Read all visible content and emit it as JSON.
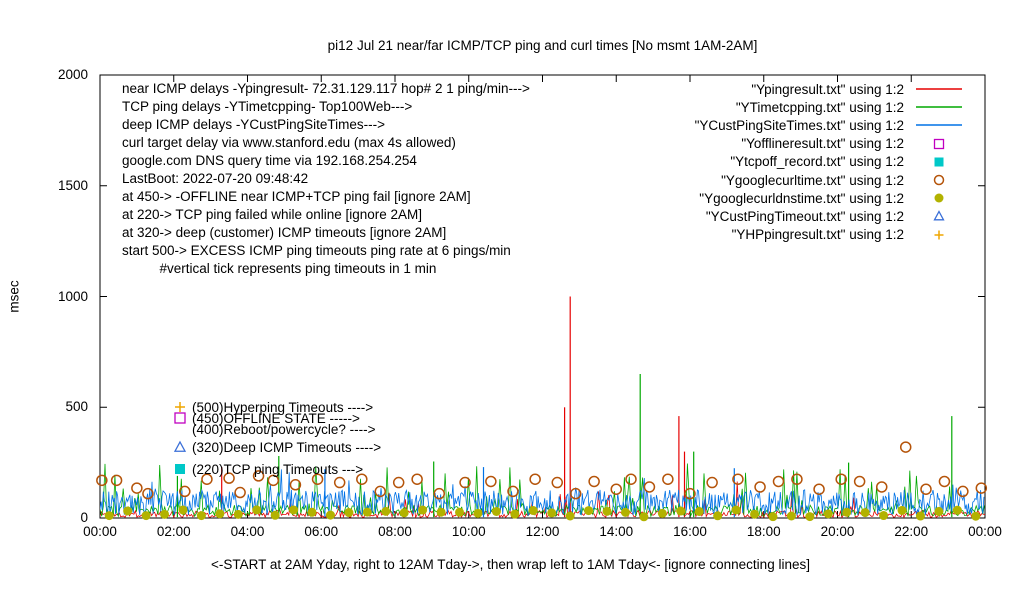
{
  "chart_data": {
    "type": "line",
    "title": "pi12 Jul 21  near/far ICMP/TCP ping and curl times [No msmt 1AM-2AM]",
    "ylabel": "msec",
    "xlabel": "",
    "xcaption": "<-START at 2AM Yday, right to 12AM Tday->, then wrap left to 1AM Tday<- [ignore connecting lines]",
    "xlim": [
      0,
      24
    ],
    "ylim": [
      0,
      2000
    ],
    "x_ticks": [
      "00:00",
      "02:00",
      "04:00",
      "06:00",
      "08:00",
      "10:00",
      "12:00",
      "14:00",
      "16:00",
      "18:00",
      "20:00",
      "22:00",
      "00:00"
    ],
    "y_ticks": [
      0,
      500,
      1000,
      1500,
      2000
    ],
    "grid": false,
    "legend_position": "top-right-inside",
    "seed": 1337,
    "annotations": [
      "near ICMP delays -Ypingresult- 72.31.129.117 hop# 2 1 ping/min--->",
      "TCP ping delays -YTimetcpping- Top100Web--->",
      "deep ICMP delays -YCustPingSiteTimes--->",
      "curl target delay via www.stanford.edu (max 4s allowed)",
      "google.com DNS query time via 192.168.254.254",
      "LastBoot: 2022-07-20 09:48:42",
      "at 450-> -OFFLINE near ICMP+TCP ping fail [ignore 2AM]",
      "at 220-> TCP ping failed while online [ignore 2AM]",
      "at 320-> deep (customer) ICMP timeouts [ignore 2AM]",
      "start 500-> EXCESS ICMP ping timeouts ping rate at 6 pings/min",
      "          #vertical tick represents ping timeouts in 1 min"
    ],
    "level_labels": [
      {
        "value": 500,
        "marker": "plus",
        "color": "#efa600",
        "text": "(500)Hyperping Timeouts ---->"
      },
      {
        "value": 450,
        "marker": "square-open",
        "color": "#c000c0",
        "text": "(450)OFFLINE STATE ----->"
      },
      {
        "value": 400,
        "marker": null,
        "color": null,
        "text": "(400)Reboot/powercycle? ---->"
      },
      {
        "value": 320,
        "marker": "triangle-open",
        "color": "#3a6fd8",
        "text": "(320)Deep ICMP Timeouts ---->"
      },
      {
        "value": 220,
        "marker": "square-filled",
        "color": "#00c8c8",
        "text": "(220)TCP ping Timeouts --->"
      }
    ],
    "legend_items": [
      {
        "label": "\"Ypingresult.txt\" using 1:2",
        "style": "line",
        "color": "#e60000"
      },
      {
        "label": "\"YTimetcpping.txt\" using 1:2",
        "style": "line",
        "color": "#00a800"
      },
      {
        "label": "\"YCustPingSiteTimes.txt\" using 1:2",
        "style": "line",
        "color": "#0072e6"
      },
      {
        "label": "\"Yofflineresult.txt\" using 1:2",
        "style": "square-open",
        "color": "#c000c0"
      },
      {
        "label": "\"Ytcpoff_record.txt\" using 1:2",
        "style": "square-filled",
        "color": "#00c8c8"
      },
      {
        "label": "\"Ygooglecurltime.txt\" using 1:2",
        "style": "circle-open",
        "color": "#b5540a"
      },
      {
        "label": "\"Ygooglecurldnstime.txt\" using 1:2",
        "style": "circle-filled",
        "color": "#b2b200"
      },
      {
        "label": "\"YCustPingTimeout.txt\" using 1:2",
        "style": "triangle-open",
        "color": "#3a6fd8"
      },
      {
        "label": "\"YHPpingresult.txt\" using 1:2",
        "style": "plus",
        "color": "#efa600"
      }
    ],
    "series": [
      {
        "name": "Ypingresult.txt",
        "type": "line",
        "color": "#e60000",
        "noise": {
          "step": 0.04,
          "base": 2,
          "spread": 32,
          "spike_prob": 0.05,
          "spike_max": 140
        },
        "spikes": [
          [
            3.3,
            230
          ],
          [
            12.6,
            500
          ],
          [
            12.75,
            1000
          ],
          [
            15.7,
            460
          ],
          [
            15.85,
            300
          ]
        ]
      },
      {
        "name": "YTimetcpping.txt",
        "type": "line",
        "color": "#00a800",
        "noise": {
          "step": 0.045,
          "base": 8,
          "spread": 50,
          "spike_prob": 0.13,
          "spike_max": 190
        },
        "spikes": [
          [
            2.1,
            190
          ],
          [
            4.85,
            280
          ],
          [
            9.05,
            255
          ],
          [
            14.65,
            650
          ],
          [
            16.1,
            300
          ],
          [
            20.3,
            250
          ],
          [
            23.1,
            460
          ]
        ]
      },
      {
        "name": "YCustPingSiteTimes.txt",
        "type": "line",
        "color": "#0072e6",
        "noise": {
          "step": 0.03,
          "base": 12,
          "spread": 115,
          "spike_prob": 0.04,
          "spike_max": 95
        },
        "spikes": [
          [
            6.1,
            220
          ],
          [
            10.4,
            230
          ],
          [
            17.2,
            225
          ]
        ]
      },
      {
        "name": "Yofflineresult.txt",
        "type": "points",
        "marker": "square-open",
        "color": "#c000c0",
        "points": []
      },
      {
        "name": "Ytcpoff_record.txt",
        "type": "points",
        "marker": "square-filled",
        "color": "#00c8c8",
        "points": []
      },
      {
        "name": "Ygooglecurltime.txt",
        "type": "points",
        "marker": "circle-open",
        "color": "#b5540a",
        "points": [
          [
            0.05,
            170
          ],
          [
            0.45,
            170
          ],
          [
            1.0,
            135
          ],
          [
            1.3,
            110
          ],
          [
            2.3,
            120
          ],
          [
            2.9,
            175
          ],
          [
            3.5,
            180
          ],
          [
            3.8,
            115
          ],
          [
            4.3,
            190
          ],
          [
            4.7,
            170
          ],
          [
            5.3,
            150
          ],
          [
            5.9,
            175
          ],
          [
            6.5,
            160
          ],
          [
            7.1,
            175
          ],
          [
            7.6,
            120
          ],
          [
            8.1,
            160
          ],
          [
            8.6,
            175
          ],
          [
            9.2,
            110
          ],
          [
            9.9,
            160
          ],
          [
            10.6,
            165
          ],
          [
            11.2,
            120
          ],
          [
            11.8,
            175
          ],
          [
            12.4,
            160
          ],
          [
            12.9,
            110
          ],
          [
            13.4,
            165
          ],
          [
            14.0,
            130
          ],
          [
            14.4,
            175
          ],
          [
            14.9,
            140
          ],
          [
            15.4,
            175
          ],
          [
            16.0,
            110
          ],
          [
            16.6,
            160
          ],
          [
            17.3,
            175
          ],
          [
            17.9,
            140
          ],
          [
            18.4,
            165
          ],
          [
            18.9,
            175
          ],
          [
            19.5,
            130
          ],
          [
            20.1,
            175
          ],
          [
            20.6,
            165
          ],
          [
            21.2,
            140
          ],
          [
            21.85,
            320
          ],
          [
            22.4,
            130
          ],
          [
            22.9,
            165
          ],
          [
            23.4,
            120
          ],
          [
            23.9,
            135
          ]
        ]
      },
      {
        "name": "Ygooglecurldnstime.txt",
        "type": "points-generated",
        "marker": "circle-filled",
        "color": "#b2b200",
        "gen": {
          "x_start": 0.25,
          "x_step": 0.5,
          "x_end": 23.95,
          "y_min": 5,
          "y_max": 38
        }
      },
      {
        "name": "YCustPingTimeout.txt",
        "type": "points",
        "marker": "triangle-open",
        "color": "#3a6fd8",
        "points": []
      },
      {
        "name": "YHPpingresult.txt",
        "type": "points",
        "marker": "plus",
        "color": "#efa600",
        "points": []
      }
    ]
  }
}
